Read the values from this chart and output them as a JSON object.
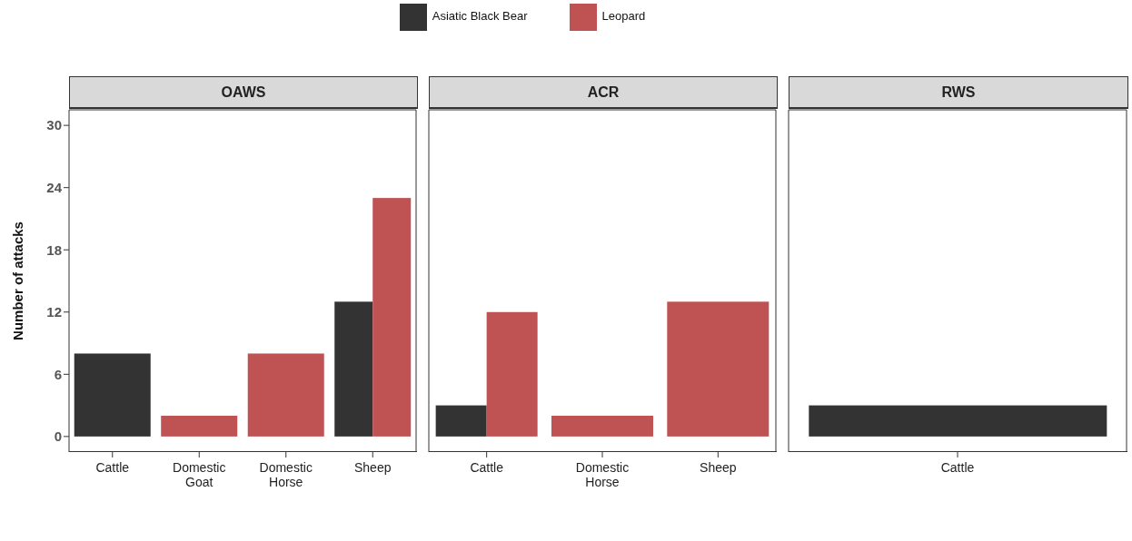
{
  "chart_data": [
    {
      "type": "bar",
      "title": "OAWS",
      "ylabel": "Number of attacks",
      "categories": [
        "Cattle",
        "Domestic Goat",
        "Domestic Horse",
        "Sheep"
      ],
      "ylim": [
        -1.5,
        31.5
      ],
      "yticks": [
        0,
        6,
        12,
        18,
        24,
        30
      ],
      "legend": "top",
      "series": [
        {
          "name": "Asiatic Black Bear",
          "color": "#333333",
          "values": [
            8,
            null,
            null,
            13
          ]
        },
        {
          "name": "Leopard",
          "color": "#bf5252",
          "values": [
            null,
            2,
            8,
            23
          ]
        }
      ]
    },
    {
      "type": "bar",
      "title": "ACR",
      "categories": [
        "Cattle",
        "Domestic Horse",
        "Sheep"
      ],
      "ylim": [
        -1.5,
        31.5
      ],
      "yticks": [
        0,
        6,
        12,
        18,
        24,
        30
      ],
      "tick_labels": "x",
      "series": [
        {
          "color": "#333333",
          "values": [
            3,
            null,
            null
          ]
        },
        {
          "color": "#bf5252",
          "values": [
            12,
            2,
            13
          ]
        }
      ]
    },
    {
      "type": "bar",
      "title": "RWS",
      "categories": [
        "Cattle"
      ],
      "ylim": [
        -1.5,
        31.5
      ],
      "yticks": [
        0,
        6,
        12,
        18,
        24,
        30
      ],
      "tick_labels": "x",
      "series": [
        {
          "color": "#333333",
          "values": [
            3
          ]
        },
        {
          "color": "#bf5252",
          "values": [
            null
          ]
        }
      ]
    }
  ]
}
